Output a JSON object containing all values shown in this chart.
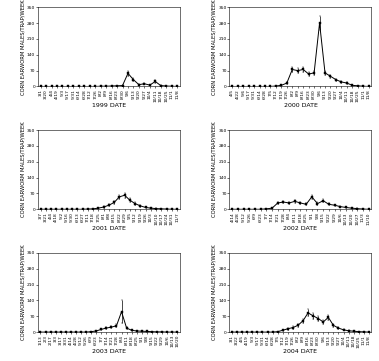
{
  "ylabel": "CORN EARWORM MALES/TRAP/WEEK",
  "ylim": [
    0,
    350
  ],
  "yticks": [
    0,
    70,
    140,
    210,
    280,
    350
  ],
  "panels": [
    {
      "year": "1999",
      "xlabel": "1999 DATE",
      "x_labels": [
        "3/1",
        "3/20",
        "4/4",
        "4/19",
        "5/3",
        "5/17",
        "5/31",
        "6/14",
        "6/28",
        "7/12",
        "7/26",
        "8/2",
        "8/9",
        "8/16",
        "8/23",
        "8/30",
        "9/6",
        "9/13",
        "9/20",
        "9/27",
        "10/4",
        "10/11",
        "10/18",
        "10/25",
        "11/1",
        "11/8"
      ],
      "y": [
        0,
        0,
        0,
        0,
        0,
        0,
        0,
        0,
        0,
        0,
        0,
        1,
        1,
        2,
        3,
        4,
        58,
        30,
        8,
        12,
        6,
        22,
        4,
        2,
        1,
        0
      ],
      "se": [
        0,
        0,
        0,
        0,
        0,
        0,
        0,
        0,
        0,
        0,
        0,
        0.3,
        0.3,
        0.5,
        0.8,
        1,
        12,
        7,
        2,
        3,
        1.5,
        5,
        1,
        0.5,
        0.3,
        0
      ]
    },
    {
      "year": "2000",
      "xlabel": "2000 DATE",
      "x_labels": [
        "4/5",
        "4/22",
        "5/6",
        "5/17",
        "5/31",
        "6/14",
        "6/28",
        "7/5",
        "7/12",
        "7/19",
        "7/26",
        "8/2",
        "8/9",
        "8/16",
        "8/23",
        "8/30",
        "9/6",
        "9/13",
        "9/20",
        "9/27",
        "10/4",
        "10/11",
        "10/18",
        "10/25",
        "11/1",
        "11/8"
      ],
      "y": [
        0,
        0,
        0,
        0,
        0,
        0,
        0,
        0,
        2,
        5,
        15,
        75,
        70,
        75,
        55,
        60,
        280,
        60,
        45,
        30,
        20,
        15,
        5,
        3,
        1,
        0
      ],
      "se": [
        0,
        0,
        0,
        0,
        0,
        0,
        0,
        0,
        0.5,
        1.5,
        4,
        12,
        10,
        12,
        9,
        10,
        30,
        9,
        7,
        5,
        4,
        3,
        1.5,
        1,
        0.5,
        0
      ]
    },
    {
      "year": "2001",
      "xlabel": "2001 DATE",
      "x_labels": [
        "3/7",
        "3/21",
        "4/4",
        "4/18",
        "5/2",
        "5/16",
        "5/30",
        "6/13",
        "6/27",
        "7/11",
        "7/18",
        "7/25",
        "8/1",
        "8/8",
        "8/15",
        "8/22",
        "8/29",
        "9/5",
        "9/12",
        "9/19",
        "9/26",
        "10/3",
        "10/10",
        "10/17",
        "10/24",
        "10/31",
        "11/7"
      ],
      "y": [
        0,
        0,
        0,
        0,
        0,
        0,
        0,
        0,
        0,
        1,
        2,
        5,
        10,
        18,
        30,
        55,
        62,
        40,
        25,
        15,
        8,
        5,
        3,
        2,
        1,
        0,
        0
      ],
      "se": [
        0,
        0,
        0,
        0,
        0,
        0,
        0,
        0,
        0,
        0.3,
        0.5,
        1.5,
        3,
        5,
        7,
        10,
        12,
        8,
        6,
        4,
        2,
        1.5,
        1,
        0.5,
        0.3,
        0,
        0
      ]
    },
    {
      "year": "2002",
      "xlabel": "2002 DATE",
      "x_labels": [
        "4/14",
        "4/28",
        "5/12",
        "5/26",
        "6/9",
        "6/23",
        "7/7",
        "7/14",
        "7/21",
        "7/28",
        "8/4",
        "8/11",
        "8/18",
        "8/25",
        "9/1",
        "9/8",
        "9/15",
        "9/22",
        "9/29",
        "10/6",
        "10/13",
        "10/20",
        "10/27",
        "11/3",
        "11/10"
      ],
      "y": [
        0,
        0,
        0,
        0,
        0,
        0,
        2,
        5,
        28,
        32,
        28,
        35,
        28,
        22,
        55,
        25,
        38,
        22,
        18,
        12,
        8,
        5,
        3,
        1,
        0
      ],
      "se": [
        0,
        0,
        0,
        0,
        0,
        0,
        0.5,
        1.5,
        5,
        6,
        5,
        7,
        5,
        4,
        8,
        5,
        7,
        4,
        3,
        2.5,
        2,
        1.5,
        1,
        0.5,
        0
      ]
    },
    {
      "year": "2003",
      "xlabel": "2003 DATE",
      "x_labels": [
        "1/13",
        "2/3",
        "2/17",
        "3/3",
        "3/17",
        "3/31",
        "4/14",
        "4/28",
        "5/12",
        "5/26",
        "6/9",
        "6/23",
        "7/7",
        "7/14",
        "7/21",
        "7/28",
        "8/4",
        "8/11",
        "8/18",
        "8/25",
        "9/1",
        "9/8",
        "9/15",
        "9/22",
        "9/29",
        "10/6",
        "10/13",
        "10/20"
      ],
      "y": [
        0,
        0,
        0,
        0,
        0,
        0,
        0,
        0,
        0,
        0,
        2,
        5,
        12,
        18,
        22,
        28,
        90,
        18,
        8,
        5,
        4,
        3,
        2,
        1,
        1,
        0,
        0,
        0
      ],
      "se": [
        0,
        0,
        0,
        0,
        0,
        0,
        0,
        0,
        0,
        0,
        0.5,
        1.5,
        3,
        5,
        6,
        7,
        50,
        5,
        2,
        1.5,
        1,
        0.8,
        0.5,
        0.3,
        0.3,
        0,
        0,
        0
      ]
    },
    {
      "year": "2004",
      "xlabel": "2004 DATE",
      "x_labels": [
        "3/1",
        "3/22",
        "4/5",
        "4/19",
        "5/3",
        "5/17",
        "5/31",
        "6/14",
        "6/28",
        "7/5",
        "7/12",
        "7/19",
        "7/26",
        "8/2",
        "8/9",
        "8/16",
        "8/23",
        "8/30",
        "9/6",
        "9/13",
        "9/20",
        "9/27",
        "10/4",
        "10/11",
        "10/18",
        "10/25",
        "11/1",
        "11/8"
      ],
      "y": [
        0,
        0,
        0,
        0,
        0,
        0,
        0,
        0,
        0,
        2,
        8,
        15,
        20,
        30,
        50,
        85,
        72,
        60,
        45,
        65,
        30,
        18,
        10,
        6,
        4,
        2,
        1,
        0
      ],
      "se": [
        0,
        0,
        0,
        0,
        0,
        0,
        0,
        0,
        0,
        0.5,
        2,
        4,
        5,
        7,
        10,
        15,
        13,
        11,
        9,
        12,
        6,
        4,
        2.5,
        1.5,
        1,
        0.5,
        0.3,
        0
      ]
    }
  ],
  "line_color": "#000000",
  "marker": "s",
  "markersize": 1.5,
  "linewidth": 0.7,
  "capsize": 1.0,
  "elinewidth": 0.5,
  "tick_labelsize": 3.2,
  "axis_labelsize": 3.8,
  "xlabel_fontsize": 4.5,
  "background": "#ffffff"
}
